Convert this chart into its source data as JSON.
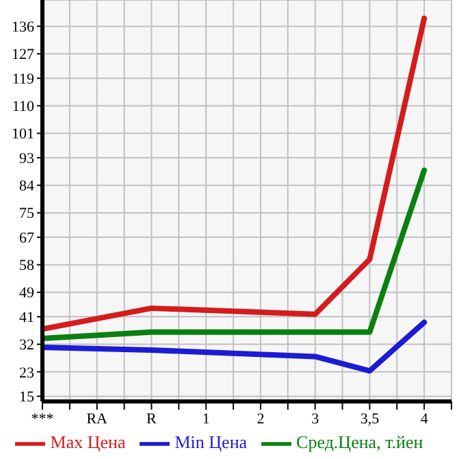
{
  "chart_data": {
    "type": "line",
    "categories": [
      "***",
      "RA",
      "R",
      "1",
      "2",
      "3",
      "3,5",
      "4"
    ],
    "series": [
      {
        "name": "Max Цена",
        "color": "#d41c1c",
        "values": [
          37.0,
          null,
          43.8,
          null,
          null,
          41.8,
          59.8,
          138.6
        ]
      },
      {
        "name": "Min Цена",
        "color": "#1c1cd4",
        "values": [
          31.0,
          null,
          30.1,
          null,
          null,
          28.0,
          23.3,
          39.2
        ]
      },
      {
        "name": "Сред.Цена, т.йен",
        "color": "#0a8010",
        "values": [
          33.9,
          null,
          36.0,
          null,
          null,
          36.0,
          36.0,
          88.9
        ]
      }
    ],
    "ylim": [
      13.3,
      144.6
    ],
    "yticks": [
      15,
      23,
      32,
      41,
      49,
      58,
      67,
      75,
      84,
      93,
      101,
      110,
      119,
      127,
      136
    ],
    "grid": true,
    "legend": "bottom",
    "marker": "none",
    "line_style": "solid"
  }
}
